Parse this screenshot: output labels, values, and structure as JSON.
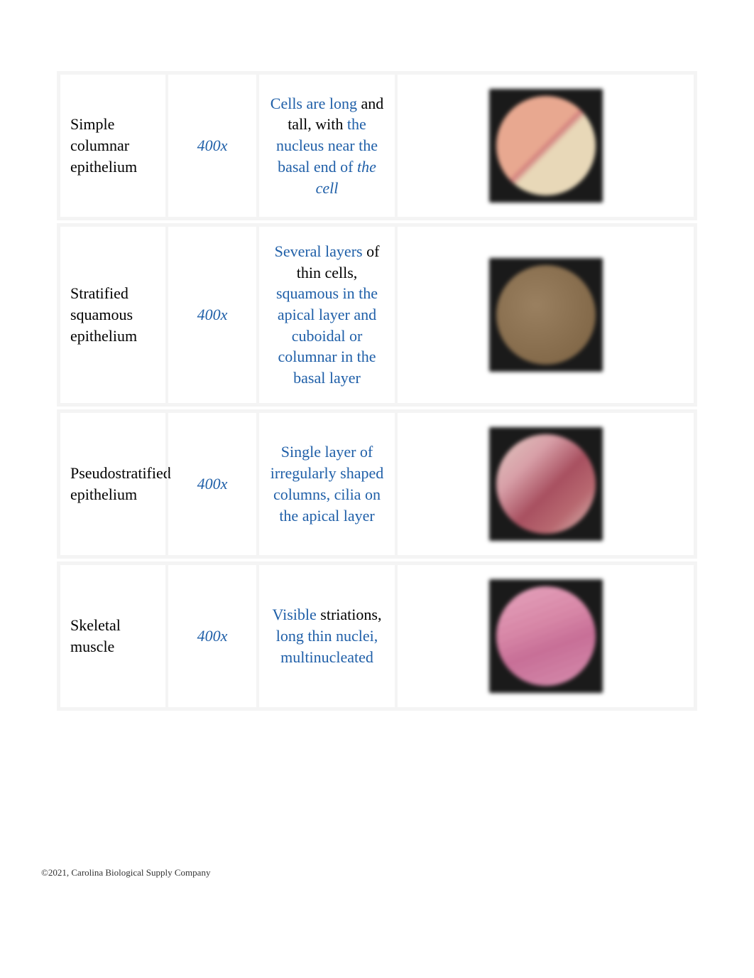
{
  "table": {
    "rows": [
      {
        "name": "Simple columnar epithelium",
        "magnification": "400x",
        "description": {
          "parts": [
            {
              "text": "Cells are long",
              "style": "blue"
            },
            {
              "text": " and tall, with ",
              "style": "black"
            },
            {
              "text": "the nucleus near the basal end of ",
              "style": "blue"
            },
            {
              "text": "the cell",
              "style": "blue-italic"
            }
          ]
        },
        "image_class": "circle-1"
      },
      {
        "name": "Stratified squamous epithelium",
        "magnification": "400x",
        "description": {
          "parts": [
            {
              "text": "Several layers",
              "style": "blue"
            },
            {
              "text": " of thin cells, ",
              "style": "black"
            },
            {
              "text": "squamous in the apical layer and cuboidal or columnar in the basal layer",
              "style": "blue"
            }
          ]
        },
        "image_class": "circle-2"
      },
      {
        "name": "Pseudostratified epithelium",
        "magnification": "400x",
        "description": {
          "parts": [
            {
              "text": "Single layer of irregularly shaped columns, cilia on the apical layer",
              "style": "blue"
            }
          ]
        },
        "image_class": "circle-3"
      },
      {
        "name": "Skeletal muscle",
        "magnification": "400x",
        "description": {
          "parts": [
            {
              "text": "Visible",
              "style": "blue"
            },
            {
              "text": " striations, ",
              "style": "black"
            },
            {
              "text": "long thin nuclei, multinucleated",
              "style": "blue"
            }
          ]
        },
        "image_class": "circle-4"
      }
    ]
  },
  "footer": "©2021, Carolina Biological Supply Company",
  "colors": {
    "blue": "#1f5fa8",
    "black": "#000000",
    "border": "#f4f4f4",
    "background": "#ffffff"
  }
}
